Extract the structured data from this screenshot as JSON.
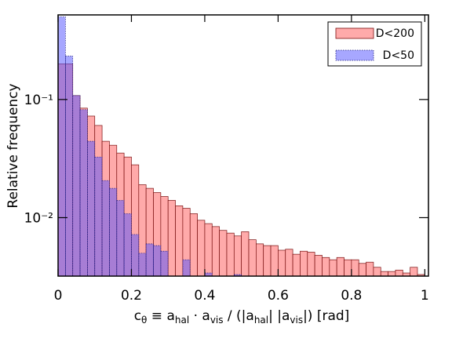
{
  "chart_data": {
    "type": "histogram",
    "xlabel": [
      {
        "text": "c"
      },
      {
        "text": "θ",
        "sub": true
      },
      {
        "text": " ≡ a"
      },
      {
        "text": "hal",
        "sub": true
      },
      {
        "text": " · a"
      },
      {
        "text": "vis",
        "sub": true
      },
      {
        "text": " / (|a"
      },
      {
        "text": "hal",
        "sub": true
      },
      {
        "text": "| |a"
      },
      {
        "text": "vis",
        "sub": true
      },
      {
        "text": "|)  [rad]"
      }
    ],
    "ylabel": "Relative frequency",
    "bins": [
      0,
      0.02,
      0.04,
      0.06,
      0.08,
      0.1,
      0.12,
      0.14,
      0.16,
      0.18,
      0.2,
      0.22,
      0.24,
      0.26,
      0.28,
      0.3,
      0.32,
      0.34,
      0.36,
      0.38,
      0.4,
      0.42,
      0.44,
      0.46,
      0.48,
      0.5,
      0.52,
      0.54,
      0.56,
      0.58,
      0.6,
      0.62,
      0.64,
      0.66,
      0.68,
      0.7,
      0.72,
      0.74,
      0.76,
      0.78,
      0.8,
      0.82,
      0.84,
      0.86,
      0.88,
      0.9,
      0.92,
      0.94,
      0.96,
      0.98,
      1
    ],
    "series": [
      {
        "name": "D<200",
        "color": "#ffaaaa",
        "edge": "#7a1010",
        "dashed": false,
        "values": [
          0.2,
          0.2,
          0.108,
          0.0845,
          0.0724,
          0.0603,
          0.0443,
          0.041,
          0.0352,
          0.0326,
          0.028,
          0.019,
          0.0177,
          0.0163,
          0.0151,
          0.014,
          0.0126,
          0.012,
          0.0108,
          0.0095,
          0.0089,
          0.0084,
          0.0078,
          0.0074,
          0.007,
          0.0076,
          0.0065,
          0.006,
          0.0058,
          0.0058,
          0.0053,
          0.0054,
          0.0049,
          0.0052,
          0.0051,
          0.0048,
          0.0046,
          0.0044,
          0.0046,
          0.0044,
          0.0044,
          0.0041,
          0.0042,
          0.0038,
          0.0035,
          0.0035,
          0.0036,
          0.0034,
          0.0038,
          0.0033
        ]
      },
      {
        "name": "D<50",
        "color": "#5050ff",
        "edge": "#202080",
        "dashed": true,
        "values": [
          0.501,
          0.233,
          0.108,
          0.082,
          0.0443,
          0.0326,
          0.0206,
          0.0177,
          0.014,
          0.0108,
          0.0072,
          0.005,
          0.006,
          0.0058,
          0.0052,
          null,
          null,
          0.0044,
          null,
          null,
          0.0034,
          null,
          null,
          null,
          0.0033,
          null,
          null,
          null,
          null,
          null,
          null,
          null,
          null,
          null,
          null,
          null,
          null,
          null,
          null,
          null,
          null,
          null,
          null,
          null,
          null,
          null,
          null,
          null,
          null,
          null
        ]
      }
    ],
    "xlim": [
      0,
      1.01
    ],
    "xticks": [
      0,
      0.2,
      0.4,
      0.6,
      0.8,
      1
    ],
    "ylim": [
      0.0032,
      0.52
    ],
    "ylog": true,
    "yticks": [
      {
        "value": 0.01,
        "label": "10⁻²"
      },
      {
        "value": 0.1,
        "label": "10⁻¹"
      }
    ],
    "legend": "upper right"
  }
}
